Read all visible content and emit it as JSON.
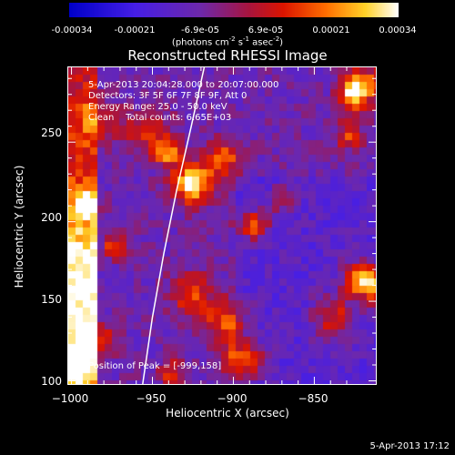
{
  "colorbar": {
    "ticks": [
      "-0.00034",
      "-0.00021",
      "-6.9e-05",
      "6.9e-05",
      "0.00021",
      "0.00034"
    ],
    "units_prefix": "(photons cm",
    "units_exp1": "-2",
    "units_mid": " s",
    "units_exp2": "-1",
    "units_mid2": " asec",
    "units_exp3": "-2",
    "units_suffix": ")"
  },
  "info": {
    "time": "5-Apr-2013 20:04:28.000 to 20:07:00.000",
    "detectors": "Detectors: 3F 5F 6F 7F 8F 9F, Att 0",
    "energy": "Energy Range: 25.0 - 50.0 keV",
    "clean": "Clean    Total counts: 6.65E+03",
    "peak": "Position of Peak = [-999,158]"
  },
  "chart_data": {
    "type": "heatmap",
    "title": "Reconstructed RHESSI Image",
    "xlabel": "Heliocentric X (arcsec)",
    "ylabel": "Heliocentric Y (arcsec)",
    "xlim": [
      -1002,
      -812
    ],
    "ylim": [
      98,
      297
    ],
    "xticks": [
      -1000,
      -950,
      -900,
      -850
    ],
    "yticks": [
      100,
      150,
      200,
      250
    ],
    "xtick_labels": [
      "−1000",
      "−950",
      "−900",
      "−850"
    ],
    "ytick_labels": [
      "100",
      "150",
      "200",
      "250"
    ],
    "colormap": "blue-purple-red-yellow-white",
    "color_range": [
      -0.00034,
      0.00034
    ],
    "peak": [
      -999,
      158
    ],
    "limb_curve": [
      [
        -956,
        98
      ],
      [
        -950,
        140
      ],
      [
        -943,
        180
      ],
      [
        -935,
        220
      ],
      [
        -926,
        260
      ],
      [
        -918,
        297
      ]
    ]
  },
  "stamp": "5-Apr-2013 17:12"
}
